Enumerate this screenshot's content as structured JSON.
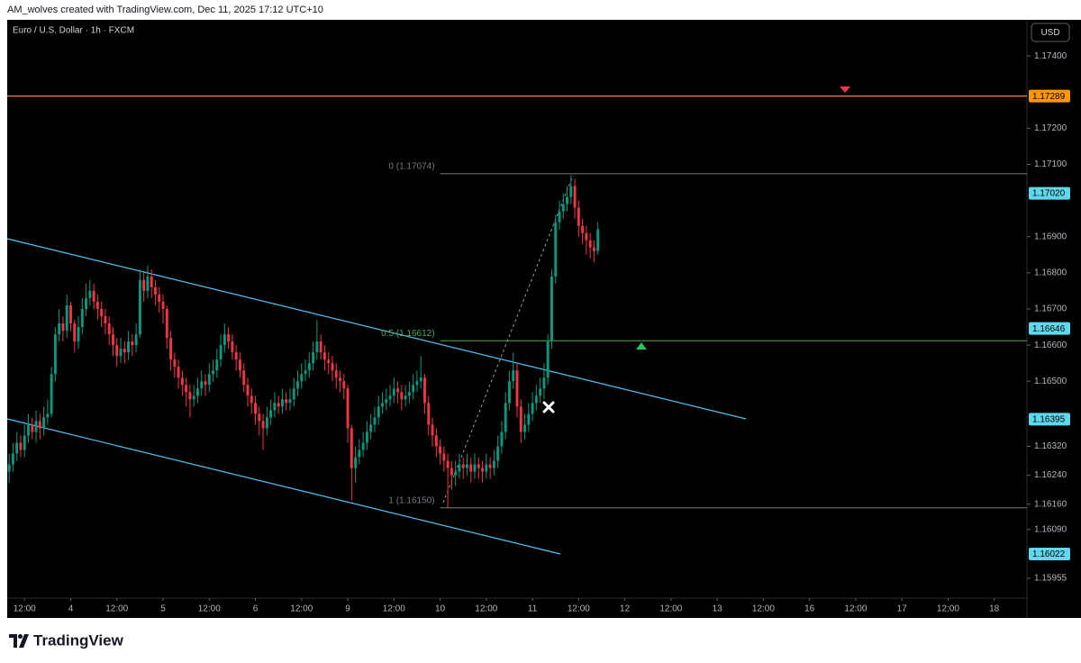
{
  "chart_data": {
    "type": "candlestick",
    "title": "AM_wolves created with TradingView.com, Dec 11, 2025 17:12 UTC+10",
    "subtitle": "Euro / U.S. Dollar · 1h · FXCM",
    "currency": "USD",
    "up_color": "#089981",
    "down_color": "#f23645",
    "grid": false,
    "xlim": [
      -0.5,
      264.5
    ],
    "xticks": [
      {
        "value": 4,
        "label": "12:00"
      },
      {
        "value": 16,
        "label": "4"
      },
      {
        "value": 28,
        "label": "12:00"
      },
      {
        "value": 40,
        "label": "5"
      },
      {
        "value": 52,
        "label": "12:00"
      },
      {
        "value": 64,
        "label": "6"
      },
      {
        "value": 76,
        "label": "12:00"
      },
      {
        "value": 88,
        "label": "9"
      },
      {
        "value": 100,
        "label": "12:00"
      },
      {
        "value": 112,
        "label": "10"
      },
      {
        "value": 124,
        "label": "12:00"
      },
      {
        "value": 136,
        "label": "11"
      },
      {
        "value": 148,
        "label": "12:00"
      },
      {
        "value": 160,
        "label": "12"
      },
      {
        "value": 172,
        "label": "12:00"
      },
      {
        "value": 184,
        "label": "13"
      },
      {
        "value": 196,
        "label": "12:00"
      },
      {
        "value": 208,
        "label": "16"
      },
      {
        "value": 220,
        "label": "12:00"
      },
      {
        "value": 232,
        "label": "17"
      },
      {
        "value": 244,
        "label": "12:00"
      },
      {
        "value": 256,
        "label": "18"
      }
    ],
    "ylim": [
      1.159,
      1.175
    ],
    "yticks": [
      {
        "value": 1.174,
        "label": "1.17400"
      },
      {
        "value": 1.172,
        "label": "1.17200"
      },
      {
        "value": 1.171,
        "label": "1.17100"
      },
      {
        "value": 1.169,
        "label": "1.16900"
      },
      {
        "value": 1.168,
        "label": "1.16800"
      },
      {
        "value": 1.167,
        "label": "1.16700"
      },
      {
        "value": 1.166,
        "label": "1.16600"
      },
      {
        "value": 1.165,
        "label": "1.16500"
      },
      {
        "value": 1.1632,
        "label": "1.16320"
      },
      {
        "value": 1.1624,
        "label": "1.16240"
      },
      {
        "value": 1.1616,
        "label": "1.16160"
      },
      {
        "value": 1.1609,
        "label": "1.16090"
      },
      {
        "value": 1.15955,
        "label": "1.15955"
      }
    ],
    "horizontal_lines": [
      {
        "value": 1.17289,
        "color": "#ff9800"
      }
    ],
    "fib_levels": [
      {
        "value": 1.17074,
        "label": "0 (1.17074)",
        "color": "#787b86"
      },
      {
        "value": 1.16612,
        "label": "0.5 (1.16612)",
        "color": "#4caf50"
      },
      {
        "value": 1.1615,
        "label": "1 (1.16150)",
        "color": "#787b86"
      }
    ],
    "price_labels": [
      {
        "value": 1.17289,
        "label": "1.17289",
        "color": "#ff9800"
      },
      {
        "value": 1.1702,
        "label": "1.17020",
        "color": "#5fd8ec"
      },
      {
        "value": 1.16646,
        "label": "1.16646",
        "color": "#5fd8ec"
      },
      {
        "value": 1.16395,
        "label": "1.16395",
        "color": "#5fd8ec"
      },
      {
        "value": 1.16022,
        "label": "1.16022",
        "color": "#5fd8ec"
      }
    ],
    "open": [
      1.1625,
      1.1627,
      1.163,
      1.1633,
      1.1631,
      1.1635,
      1.1638,
      1.1636,
      1.1639,
      1.1637,
      1.164,
      1.1641,
      1.1652,
      1.1663,
      1.1666,
      1.1664,
      1.1671,
      1.1666,
      1.1661,
      1.1665,
      1.167,
      1.1673,
      1.1675,
      1.1672,
      1.167,
      1.1668,
      1.1666,
      1.1663,
      1.166,
      1.1657,
      1.1659,
      1.1658,
      1.1661,
      1.166,
      1.1663,
      1.1678,
      1.1675,
      1.1679,
      1.1676,
      1.1674,
      1.1672,
      1.167,
      1.1662,
      1.1656,
      1.1654,
      1.1651,
      1.1649,
      1.1647,
      1.1645,
      1.1646,
      1.1648,
      1.165,
      1.1649,
      1.1652,
      1.1653,
      1.1656,
      1.166,
      1.1663,
      1.1661,
      1.1658,
      1.1656,
      1.1653,
      1.1649,
      1.1646,
      1.1644,
      1.1641,
      1.1639,
      1.1637,
      1.164,
      1.1642,
      1.1644,
      1.1643,
      1.1645,
      1.1644,
      1.1645,
      1.1648,
      1.165,
      1.1652,
      1.1653,
      1.1655,
      1.1658,
      1.1661,
      1.1658,
      1.1656,
      1.1655,
      1.1653,
      1.1651,
      1.165,
      1.1648,
      1.1637,
      1.1626,
      1.1629,
      1.1631,
      1.1633,
      1.1636,
      1.1638,
      1.164,
      1.1643,
      1.1644,
      1.1645,
      1.1646,
      1.1648,
      1.1647,
      1.1645,
      1.1646,
      1.1647,
      1.1649,
      1.165,
      1.1651,
      1.1644,
      1.1638,
      1.1635,
      1.1632,
      1.163,
      1.1628,
      1.1626,
      1.1624,
      1.1625,
      1.1627,
      1.1626,
      1.1627,
      1.1625,
      1.1627,
      1.1626,
      1.1625,
      1.1627,
      1.1626,
      1.1628,
      1.1632,
      1.1636,
      1.1644,
      1.165,
      1.1653,
      1.1643,
      1.1636,
      1.1638,
      1.1641,
      1.1644,
      1.1646,
      1.1648,
      1.1651,
      1.1661,
      1.1679,
      1.1694,
      1.1697,
      1.1699,
      1.1701,
      1.1704,
      1.1698,
      1.1693,
      1.1691,
      1.1689,
      1.1687,
      1.1686
    ],
    "high": [
      1.163,
      1.1633,
      1.1636,
      1.1635,
      1.1638,
      1.1641,
      1.164,
      1.1642,
      1.1641,
      1.1643,
      1.1645,
      1.1654,
      1.1665,
      1.167,
      1.1668,
      1.1674,
      1.1672,
      1.1667,
      1.1668,
      1.1673,
      1.1677,
      1.1678,
      1.1677,
      1.1674,
      1.1672,
      1.167,
      1.1668,
      1.1665,
      1.1662,
      1.1662,
      1.1661,
      1.1664,
      1.1663,
      1.1666,
      1.1681,
      1.168,
      1.1682,
      1.1681,
      1.1678,
      1.1676,
      1.1674,
      1.1671,
      1.1664,
      1.1658,
      1.1656,
      1.1653,
      1.1651,
      1.1649,
      1.1649,
      1.1651,
      1.1653,
      1.1652,
      1.1655,
      1.1656,
      1.1659,
      1.1663,
      1.1666,
      1.1665,
      1.1663,
      1.166,
      1.1658,
      1.1655,
      1.1651,
      1.1648,
      1.1646,
      1.1643,
      1.1641,
      1.1643,
      1.1645,
      1.1647,
      1.1646,
      1.1648,
      1.1647,
      1.1648,
      1.1651,
      1.1653,
      1.1655,
      1.1656,
      1.1658,
      1.1661,
      1.1667,
      1.1663,
      1.166,
      1.1658,
      1.1657,
      1.1655,
      1.1653,
      1.1652,
      1.1649,
      1.1638,
      1.1632,
      1.1634,
      1.1636,
      1.1639,
      1.1641,
      1.1643,
      1.1646,
      1.1647,
      1.1648,
      1.1649,
      1.1651,
      1.165,
      1.1649,
      1.1649,
      1.165,
      1.1652,
      1.1653,
      1.1657,
      1.1652,
      1.1646,
      1.164,
      1.1637,
      1.1634,
      1.1632,
      1.163,
      1.1628,
      1.1628,
      1.163,
      1.1629,
      1.163,
      1.1629,
      1.163,
      1.1629,
      1.1628,
      1.163,
      1.1629,
      1.1631,
      1.1635,
      1.1639,
      1.1647,
      1.1653,
      1.1658,
      1.1655,
      1.1645,
      1.1641,
      1.1644,
      1.1647,
      1.1649,
      1.1651,
      1.1655,
      1.1663,
      1.1681,
      1.1696,
      1.17,
      1.1702,
      1.1704,
      1.1707,
      1.1706,
      1.17,
      1.1695,
      1.1693,
      1.1691,
      1.1689,
      1.1694
    ],
    "low": [
      1.1622,
      1.1625,
      1.1628,
      1.1629,
      1.1629,
      1.1633,
      1.1634,
      1.1633,
      1.1634,
      1.1635,
      1.1638,
      1.164,
      1.165,
      1.1661,
      1.1661,
      1.1662,
      1.1664,
      1.1658,
      1.1659,
      1.1663,
      1.1668,
      1.1671,
      1.167,
      1.1667,
      1.1665,
      1.1663,
      1.166,
      1.1657,
      1.1654,
      1.1655,
      1.1655,
      1.1656,
      1.1657,
      1.1658,
      1.1662,
      1.1672,
      1.1673,
      1.1673,
      1.1671,
      1.1669,
      1.1666,
      1.1659,
      1.1653,
      1.1651,
      1.1648,
      1.1646,
      1.1643,
      1.164,
      1.1643,
      1.1644,
      1.1646,
      1.1646,
      1.1647,
      1.165,
      1.1651,
      1.1654,
      1.1658,
      1.1659,
      1.1656,
      1.1653,
      1.1651,
      1.1647,
      1.1643,
      1.1641,
      1.1638,
      1.1635,
      1.1631,
      1.1635,
      1.1638,
      1.164,
      1.1641,
      1.1641,
      1.1642,
      1.1642,
      1.1643,
      1.1646,
      1.1648,
      1.165,
      1.1651,
      1.1653,
      1.1656,
      1.1656,
      1.1653,
      1.1652,
      1.165,
      1.1648,
      1.1647,
      1.1645,
      1.1633,
      1.1617,
      1.1622,
      1.1627,
      1.1629,
      1.1631,
      1.1634,
      1.1636,
      1.1638,
      1.1641,
      1.1642,
      1.1643,
      1.1644,
      1.1644,
      1.1642,
      1.1643,
      1.1644,
      1.1645,
      1.1647,
      1.1648,
      1.1641,
      1.1635,
      1.1632,
      1.1629,
      1.1627,
      1.1625,
      1.1615,
      1.162,
      1.1621,
      1.1623,
      1.1623,
      1.1624,
      1.1622,
      1.1623,
      1.1623,
      1.1622,
      1.1623,
      1.1623,
      1.1624,
      1.1626,
      1.163,
      1.1634,
      1.1642,
      1.1648,
      1.164,
      1.1633,
      1.1634,
      1.1636,
      1.1639,
      1.1642,
      1.1644,
      1.1645,
      1.1649,
      1.1659,
      1.1677,
      1.1692,
      1.1695,
      1.1697,
      1.1699,
      1.1695,
      1.169,
      1.1688,
      1.1685,
      1.1684,
      1.1683,
      1.1685
    ],
    "close": [
      1.1627,
      1.163,
      1.1633,
      1.1631,
      1.1635,
      1.1638,
      1.1636,
      1.1639,
      1.1637,
      1.164,
      1.1641,
      1.1652,
      1.1663,
      1.1666,
      1.1664,
      1.1671,
      1.1666,
      1.1661,
      1.1665,
      1.167,
      1.1673,
      1.1675,
      1.1672,
      1.167,
      1.1668,
      1.1666,
      1.1663,
      1.166,
      1.1657,
      1.1659,
      1.1658,
      1.1661,
      1.166,
      1.1663,
      1.1678,
      1.1675,
      1.1679,
      1.1676,
      1.1674,
      1.1672,
      1.167,
      1.1662,
      1.1656,
      1.1654,
      1.1651,
      1.1649,
      1.1647,
      1.1645,
      1.1646,
      1.1648,
      1.165,
      1.1649,
      1.1652,
      1.1653,
      1.1656,
      1.166,
      1.1663,
      1.1661,
      1.1658,
      1.1656,
      1.1653,
      1.1649,
      1.1646,
      1.1644,
      1.1641,
      1.1639,
      1.1637,
      1.164,
      1.1642,
      1.1644,
      1.1643,
      1.1645,
      1.1644,
      1.1645,
      1.1648,
      1.165,
      1.1652,
      1.1653,
      1.1655,
      1.1658,
      1.1661,
      1.1658,
      1.1656,
      1.1655,
      1.1653,
      1.1651,
      1.165,
      1.1648,
      1.1637,
      1.1626,
      1.1629,
      1.1631,
      1.1633,
      1.1636,
      1.1638,
      1.164,
      1.1643,
      1.1644,
      1.1645,
      1.1646,
      1.1648,
      1.1647,
      1.1645,
      1.1646,
      1.1647,
      1.1649,
      1.165,
      1.1651,
      1.1644,
      1.1638,
      1.1635,
      1.1632,
      1.163,
      1.1628,
      1.1626,
      1.1624,
      1.1625,
      1.1627,
      1.1626,
      1.1627,
      1.1625,
      1.1627,
      1.1626,
      1.1625,
      1.1627,
      1.1626,
      1.1628,
      1.1632,
      1.1636,
      1.1644,
      1.165,
      1.1653,
      1.1643,
      1.1636,
      1.1638,
      1.1641,
      1.1644,
      1.1646,
      1.1648,
      1.1651,
      1.1661,
      1.1679,
      1.1694,
      1.1697,
      1.1699,
      1.1701,
      1.1704,
      1.1698,
      1.1693,
      1.1691,
      1.1689,
      1.1687,
      1.1686,
      1.1692
    ]
  },
  "branding": {
    "text": "TradingView"
  }
}
